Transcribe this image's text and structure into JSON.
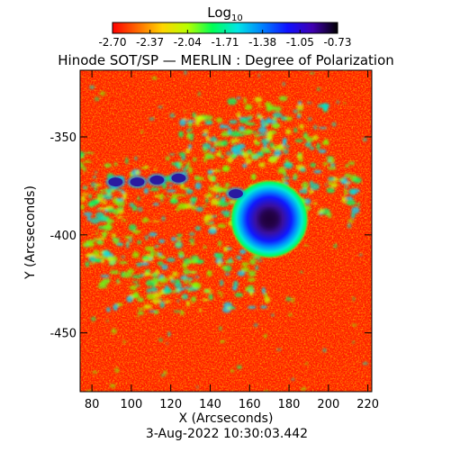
{
  "colorbar": {
    "label_base": "Log",
    "label_sub": "10",
    "ticks": [
      "-2.70",
      "-2.37",
      "-2.04",
      "-1.71",
      "-1.38",
      "-1.05",
      "-0.73"
    ],
    "colors": [
      "#ff0000",
      "#ff6a00",
      "#ffd500",
      "#b8ff00",
      "#00ff55",
      "#00e5e5",
      "#0080ff",
      "#1010ff",
      "#4000b0",
      "#000000"
    ]
  },
  "chart_data": {
    "type": "heatmap",
    "title": "Hinode SOT/SP — MERLIN : Degree of Polarization",
    "xlabel": "X (Arcseconds)",
    "ylabel": "Y (Arcseconds)",
    "xlim": [
      74,
      222
    ],
    "ylim": [
      -480,
      -316
    ],
    "xticks": [
      80,
      100,
      120,
      140,
      160,
      180,
      200,
      220
    ],
    "yticks": [
      -350,
      -400,
      -450
    ],
    "scale": "log10",
    "value_range": [
      -2.7,
      -0.73
    ],
    "features": [
      {
        "kind": "sunspot",
        "x": 170,
        "y": -392,
        "radius_arcsec": 15
      },
      {
        "kind": "pore",
        "x": 92,
        "y": -373
      },
      {
        "kind": "pore",
        "x": 103,
        "y": -373
      },
      {
        "kind": "pore",
        "x": 113,
        "y": -372
      },
      {
        "kind": "pore",
        "x": 124,
        "y": -371
      },
      {
        "kind": "pore",
        "x": 153,
        "y": -379
      }
    ]
  },
  "footer": {
    "timestamp": "3-Aug-2022 10:30:03.442"
  }
}
